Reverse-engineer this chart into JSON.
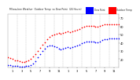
{
  "background_color": "#ffffff",
  "plot_bg_color": "#ffffff",
  "grid_color": "#bbbbbb",
  "temp_color": "#ff0000",
  "dew_color": "#0000ff",
  "marker_size": 1.5,
  "xlim": [
    0,
    24
  ],
  "ylim": [
    10,
    75
  ],
  "vgrid_positions": [
    2,
    4,
    6,
    8,
    10,
    12,
    14,
    16,
    18,
    20,
    22,
    24
  ],
  "x_tick_positions": [
    1,
    3,
    5,
    7,
    9,
    11,
    13,
    15,
    17,
    19,
    21,
    23
  ],
  "x_tick_labels": [
    "1",
    "3",
    "5",
    "7",
    "9",
    "11",
    "1",
    "3",
    "5",
    "7",
    "9",
    "11"
  ],
  "y_tick_positions": [
    20,
    30,
    40,
    50,
    60,
    70
  ],
  "y_tick_labels": [
    "20",
    "30",
    "40",
    "50",
    "60",
    "70"
  ],
  "title_text": "Milwaukee Weather  Outdoor Temp  vs Dew Point  (24 Hours)",
  "legend_temp_label": "Outdoor Temp",
  "legend_dew_label": "Dew Point",
  "temp_data": [
    [
      0.0,
      22
    ],
    [
      0.5,
      21
    ],
    [
      1.0,
      20
    ],
    [
      1.5,
      19
    ],
    [
      2.0,
      19
    ],
    [
      2.5,
      18
    ],
    [
      3.0,
      17
    ],
    [
      3.5,
      17
    ],
    [
      4.0,
      18
    ],
    [
      4.5,
      19
    ],
    [
      5.0,
      20
    ],
    [
      5.5,
      23
    ],
    [
      6.0,
      26
    ],
    [
      6.5,
      30
    ],
    [
      7.0,
      34
    ],
    [
      7.5,
      38
    ],
    [
      8.0,
      41
    ],
    [
      8.5,
      44
    ],
    [
      9.0,
      47
    ],
    [
      9.5,
      49
    ],
    [
      10.0,
      50
    ],
    [
      10.5,
      51
    ],
    [
      11.0,
      52
    ],
    [
      11.5,
      51
    ],
    [
      12.0,
      52
    ],
    [
      12.5,
      53
    ],
    [
      13.0,
      54
    ],
    [
      13.5,
      53
    ],
    [
      14.0,
      54
    ],
    [
      14.5,
      55
    ],
    [
      15.0,
      56
    ],
    [
      15.5,
      57
    ],
    [
      16.0,
      59
    ],
    [
      16.5,
      60
    ],
    [
      17.0,
      61
    ],
    [
      17.5,
      61
    ],
    [
      18.0,
      61
    ],
    [
      18.5,
      61
    ],
    [
      19.0,
      60
    ],
    [
      19.5,
      60
    ],
    [
      20.0,
      61
    ],
    [
      20.5,
      62
    ],
    [
      21.0,
      63
    ],
    [
      21.5,
      63
    ],
    [
      22.0,
      63
    ],
    [
      22.5,
      63
    ],
    [
      23.0,
      63
    ],
    [
      23.5,
      63
    ],
    [
      24.0,
      63
    ]
  ],
  "dew_data": [
    [
      0.0,
      13
    ],
    [
      0.5,
      13
    ],
    [
      1.0,
      12
    ],
    [
      1.5,
      12
    ],
    [
      2.0,
      12
    ],
    [
      2.5,
      11
    ],
    [
      3.0,
      11
    ],
    [
      3.5,
      11
    ],
    [
      4.0,
      12
    ],
    [
      4.5,
      12
    ],
    [
      5.0,
      13
    ],
    [
      5.5,
      15
    ],
    [
      6.0,
      18
    ],
    [
      6.5,
      22
    ],
    [
      7.0,
      26
    ],
    [
      7.5,
      30
    ],
    [
      8.0,
      33
    ],
    [
      8.5,
      36
    ],
    [
      9.0,
      37
    ],
    [
      9.5,
      37
    ],
    [
      10.0,
      36
    ],
    [
      10.5,
      35
    ],
    [
      11.0,
      33
    ],
    [
      11.5,
      32
    ],
    [
      12.0,
      33
    ],
    [
      12.5,
      34
    ],
    [
      13.0,
      35
    ],
    [
      13.5,
      34
    ],
    [
      14.0,
      35
    ],
    [
      14.5,
      36
    ],
    [
      15.0,
      37
    ],
    [
      15.5,
      38
    ],
    [
      16.0,
      40
    ],
    [
      16.5,
      41
    ],
    [
      17.0,
      42
    ],
    [
      17.5,
      42
    ],
    [
      18.0,
      42
    ],
    [
      18.5,
      42
    ],
    [
      19.0,
      41
    ],
    [
      19.5,
      41
    ],
    [
      20.0,
      42
    ],
    [
      20.5,
      43
    ],
    [
      21.0,
      44
    ],
    [
      21.5,
      44
    ],
    [
      22.0,
      45
    ],
    [
      22.5,
      45
    ],
    [
      23.0,
      45
    ],
    [
      23.5,
      45
    ],
    [
      24.0,
      45
    ]
  ]
}
